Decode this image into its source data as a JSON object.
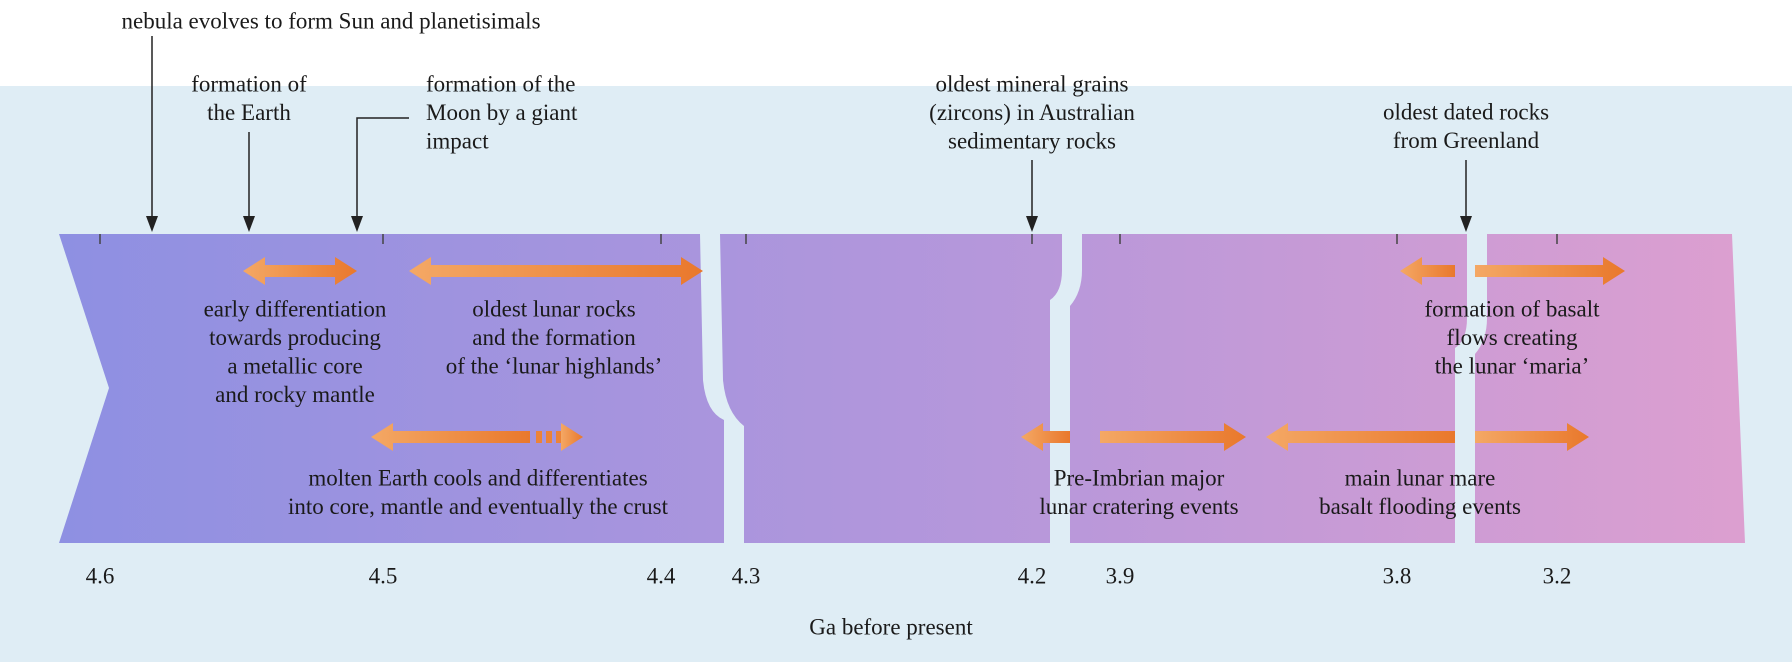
{
  "top_labels": [
    {
      "lines": [
        "nebula evolves to form Sun and planetisimals"
      ]
    },
    {
      "lines": [
        "formation of",
        "the Earth"
      ]
    },
    {
      "lines": [
        "formation of the",
        "Moon by a giant",
        "impact"
      ]
    },
    {
      "lines": [
        "oldest mineral grains",
        "(zircons) in Australian",
        "sedimentary rocks"
      ]
    },
    {
      "lines": [
        "oldest dated rocks",
        "from Greenland"
      ]
    }
  ],
  "events": [
    {
      "lines": [
        "early differentiation",
        "towards producing",
        "a metallic core",
        "and rocky mantle"
      ]
    },
    {
      "lines": [
        "oldest lunar rocks",
        "and the formation",
        "of the ‘lunar highlands’"
      ]
    },
    {
      "lines": [
        "molten Earth cools and differentiates",
        "into core, mantle and eventually the crust"
      ]
    },
    {
      "lines": [
        "Pre-Imbrian major",
        "lunar cratering events"
      ]
    },
    {
      "lines": [
        "main lunar mare",
        "basalt flooding events"
      ]
    },
    {
      "lines": [
        "formation of basalt",
        "flows creating",
        "the lunar ‘maria’"
      ]
    }
  ],
  "axis": {
    "ticks": [
      "4.6",
      "4.5",
      "4.4",
      "4.3",
      "4.2",
      "3.9",
      "3.8",
      "3.2"
    ],
    "label": "Ga before present"
  }
}
